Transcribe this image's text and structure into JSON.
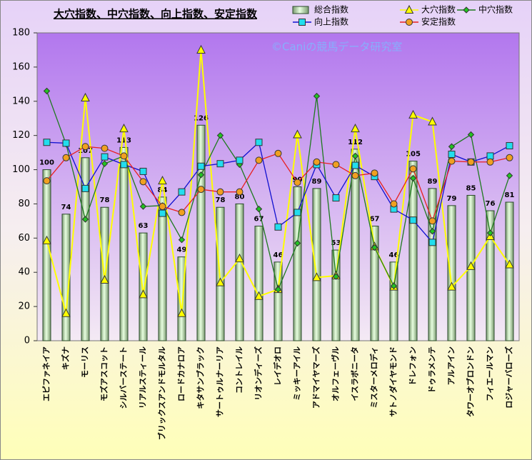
{
  "chart_data": {
    "type": "combo",
    "title": "大穴指数、中穴指数、向上指数、安定指数",
    "annotation": "©Caniの競馬データ研究室",
    "categories": [
      "エピファネイア",
      "キズナ",
      "モーリス",
      "モズアスコット",
      "シルバーステート",
      "リアルスティール",
      "ブリックスアンドモルタル",
      "ロードカナロア",
      "キタサンブラック",
      "サートゥルナーリア",
      "コントレイル",
      "リオンディーズ",
      "レイデオロ",
      "ミッキーアイル",
      "アドマイヤマーズ",
      "オルフェーヴル",
      "イスラボニータ",
      "ミスターメロディ",
      "サトノダイヤモンド",
      "ドレフォン",
      "ドゥラメンテ",
      "アルアイン",
      "タワーオブロンドン",
      "フィエールマン",
      "ロジャーバローズ"
    ],
    "series": [
      {
        "name": "総合指数",
        "type": "bar",
        "color": "#c8f0b8",
        "values": [
          100,
          74,
          107,
          78,
          113,
          63,
          84,
          49,
          126,
          78,
          80,
          67,
          46,
          90,
          89,
          53,
          112,
          67,
          46,
          105,
          89,
          79,
          85,
          76,
          81
        ]
      },
      {
        "name": "大穴指数",
        "type": "line",
        "marker": "triangle",
        "color": "#ffff00",
        "values": [
          58.5,
          16,
          142,
          35.5,
          124,
          27,
          93.5,
          16,
          170,
          34,
          48,
          26,
          30,
          120.5,
          37,
          38,
          124,
          55,
          31.5,
          132,
          128,
          31.5,
          43.5,
          61,
          44.5
        ]
      },
      {
        "name": "中穴指数",
        "type": "line",
        "marker": "diamond",
        "color": "#1e7a1e",
        "values": [
          146,
          115,
          71,
          103.5,
          108,
          78.5,
          79,
          59,
          97,
          120,
          103,
          77,
          30,
          57,
          143,
          37.5,
          108,
          54.5,
          32,
          95,
          64,
          113.5,
          120.5,
          63,
          96.5
        ]
      },
      {
        "name": "向上指数",
        "type": "line",
        "marker": "square",
        "color": "#1010d0",
        "values": [
          116,
          115.5,
          89,
          107.5,
          103,
          99,
          74.5,
          87,
          102,
          103.5,
          105.5,
          116,
          66.5,
          75,
          103,
          83.5,
          102.5,
          96,
          77,
          70.5,
          57.5,
          109,
          104.5,
          108,
          114
        ]
      },
      {
        "name": "安定指数",
        "type": "line",
        "marker": "circle",
        "color": "#e82020",
        "values": [
          93.5,
          107,
          113.5,
          112.5,
          108,
          93,
          78.5,
          75,
          88.5,
          87,
          87,
          105.5,
          109.5,
          92.5,
          104.5,
          103,
          96.5,
          98,
          80,
          100.5,
          70,
          105,
          104.5,
          104.5,
          107
        ]
      }
    ],
    "ylim": [
      0,
      180
    ],
    "yticks": [
      0,
      20,
      40,
      60,
      80,
      100,
      120,
      140,
      160,
      180
    ]
  }
}
